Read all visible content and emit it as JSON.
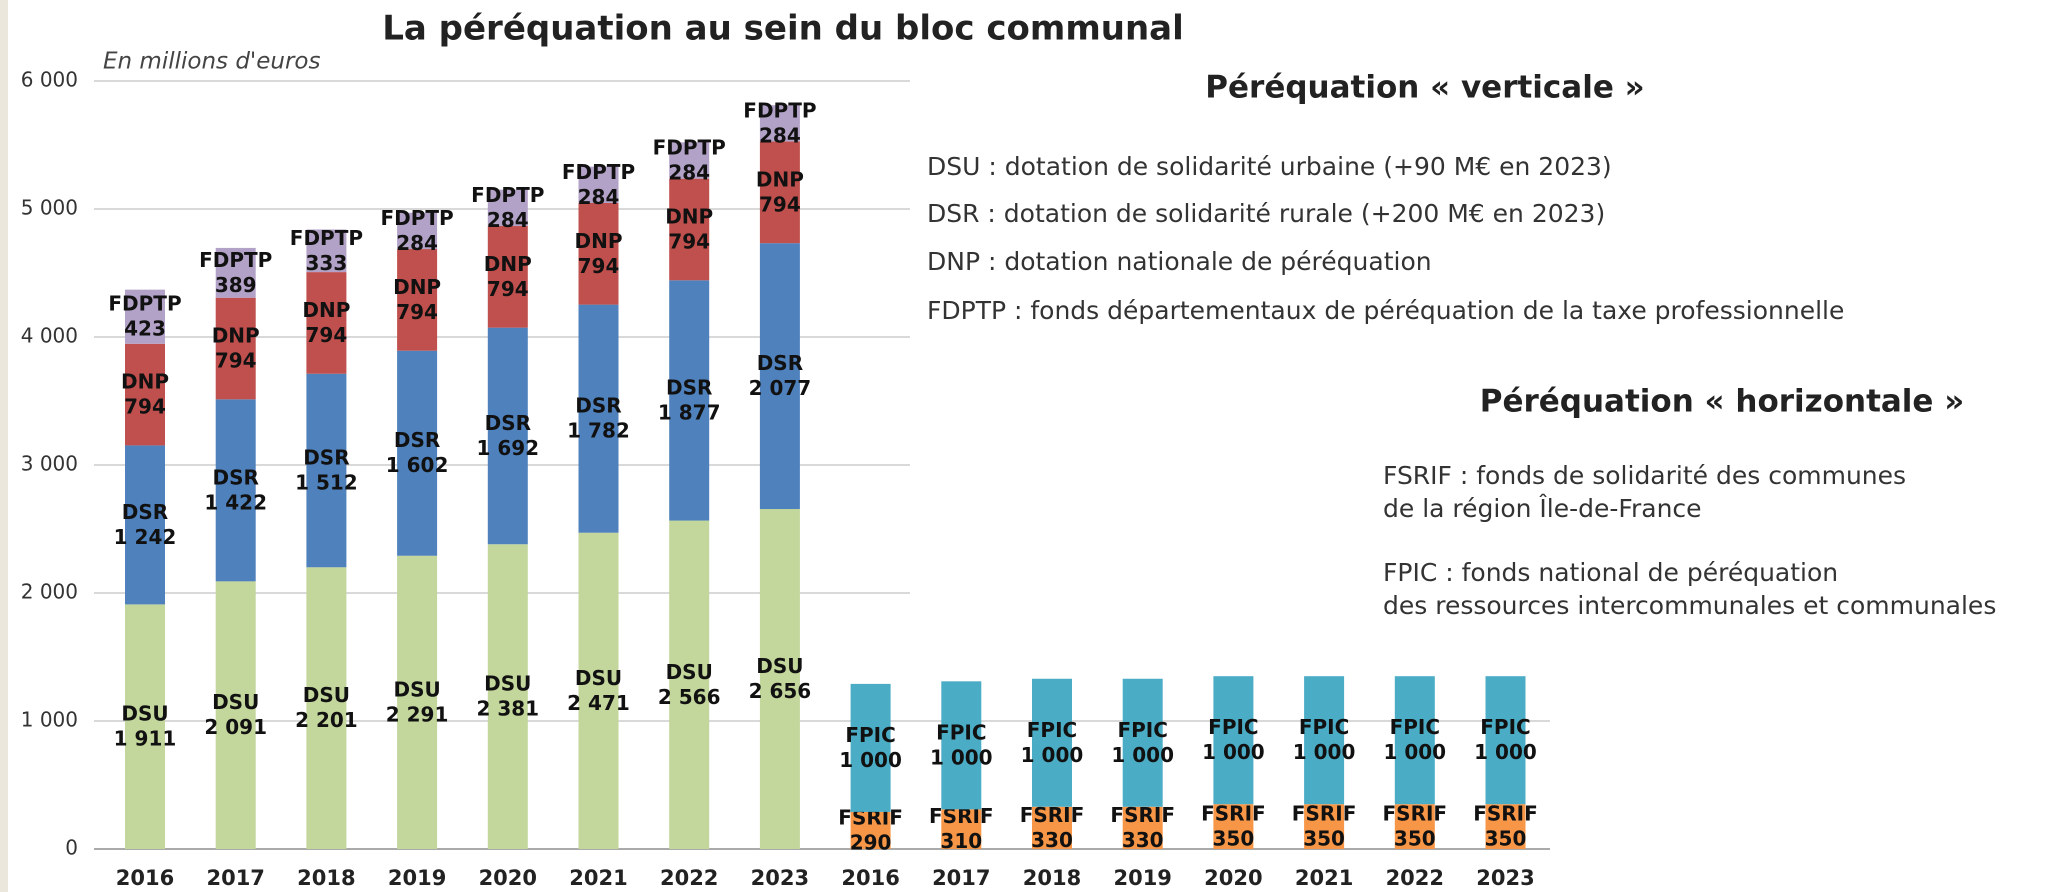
{
  "chart_data": {
    "type": "bar",
    "stacked": true,
    "title": "La péréquation au sein du bloc communal",
    "subtitle": "En millions d'euros",
    "categories": [
      "2016",
      "2017",
      "2018",
      "2019",
      "2020",
      "2021",
      "2022",
      "2023",
      "2016",
      "2017",
      "2018",
      "2019",
      "2020",
      "2021",
      "2022",
      "2023"
    ],
    "series": [
      {
        "name": "DSU",
        "color": "#c3d69b",
        "values": [
          1911,
          2091,
          2201,
          2291,
          2381,
          2471,
          2566,
          2656,
          null,
          null,
          null,
          null,
          null,
          null,
          null,
          null
        ],
        "value_labels": [
          "1 911",
          "2 091",
          "2 201",
          "2 291",
          "2 381",
          "2 471",
          "2 566",
          "2 656",
          null,
          null,
          null,
          null,
          null,
          null,
          null,
          null
        ]
      },
      {
        "name": "DSR",
        "color": "#4f81bd",
        "values": [
          1242,
          1422,
          1512,
          1602,
          1692,
          1782,
          1877,
          2077,
          null,
          null,
          null,
          null,
          null,
          null,
          null,
          null
        ],
        "value_labels": [
          "1 242",
          "1 422",
          "1 512",
          "1 602",
          "1 692",
          "1 782",
          "1 877",
          "2 077",
          null,
          null,
          null,
          null,
          null,
          null,
          null,
          null
        ]
      },
      {
        "name": "DNP",
        "color": "#c0504d",
        "values": [
          794,
          794,
          794,
          794,
          794,
          794,
          794,
          794,
          null,
          null,
          null,
          null,
          null,
          null,
          null,
          null
        ]
      },
      {
        "name": "FDPTP",
        "color": "#b3a2c7",
        "values": [
          423,
          389,
          333,
          284,
          284,
          284,
          284,
          284,
          null,
          null,
          null,
          null,
          null,
          null,
          null,
          null
        ]
      },
      {
        "name": "FSRIF",
        "color": "#f79646",
        "values": [
          null,
          null,
          null,
          null,
          null,
          null,
          null,
          null,
          290,
          310,
          330,
          330,
          350,
          350,
          350,
          350
        ]
      },
      {
        "name": "FPIC",
        "color": "#4bacc6",
        "values": [
          null,
          null,
          null,
          null,
          null,
          null,
          null,
          null,
          1000,
          1000,
          1000,
          1000,
          1000,
          1000,
          1000,
          1000
        ],
        "value_labels": [
          null,
          null,
          null,
          null,
          null,
          null,
          null,
          null,
          "1 000",
          "1 000",
          "1 000",
          "1 000",
          "1 000",
          "1 000",
          "1 000",
          "1 000"
        ]
      }
    ],
    "ylim": [
      0,
      6000
    ],
    "yticks": [
      0,
      {
        "value": 1000,
        "label": "1 000"
      },
      {
        "value": 2000,
        "label": "2 000"
      },
      {
        "value": 3000,
        "label": "3 000"
      },
      {
        "value": 4000,
        "label": "4 000"
      },
      {
        "value": 5000,
        "label": "5 000"
      },
      {
        "value": 6000,
        "label": "6 000"
      }
    ],
    "grid": true
  },
  "annotations": {
    "vertical": {
      "heading": "Péréquation « verticale »",
      "lines": [
        "DSU : dotation de solidarité urbaine (+90 M€ en 2023)",
        "DSR : dotation de solidarité rurale (+200 M€ en 2023)",
        "DNP : dotation nationale de péréquation",
        "FDPTP : fonds départementaux de péréquation de la taxe professionnelle"
      ]
    },
    "horizontal": {
      "heading": "Péréquation « horizontale »",
      "lines": [
        "FSRIF : fonds de solidarité des communes",
        "de la région Île-de-France",
        "FPIC : fonds national de péréquation",
        "des ressources intercommunales et communales"
      ]
    }
  }
}
